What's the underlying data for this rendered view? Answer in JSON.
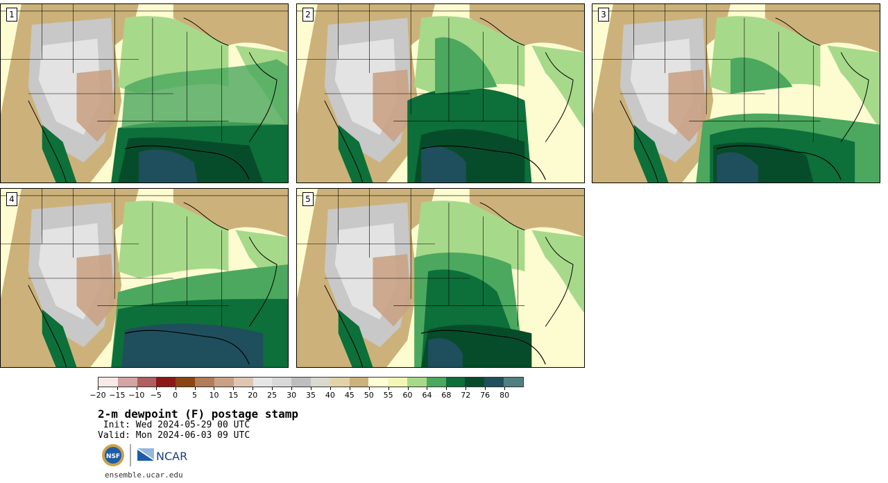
{
  "panels": [
    {
      "num": "1"
    },
    {
      "num": "2"
    },
    {
      "num": "3"
    },
    {
      "num": "4"
    },
    {
      "num": "5"
    }
  ],
  "colorbar": {
    "colors": [
      "#f6e9e6",
      "#d4a3a3",
      "#b05f60",
      "#8c1818",
      "#8b4513",
      "#b07d58",
      "#c9a285",
      "#e0c6b2",
      "#e6e6e6",
      "#d8d8d8",
      "#bebebe",
      "#d9d9cf",
      "#e2d2a8",
      "#ccb27a",
      "#fffed6",
      "#f3f7b5",
      "#a7d98a",
      "#4ba85e",
      "#0d6f3a",
      "#074c2a",
      "#1f4f5c",
      "#4f7f80"
    ],
    "tick_labels": [
      "−20",
      "−15",
      "−10",
      "−5",
      "0",
      "5",
      "10",
      "15",
      "20",
      "25",
      "30",
      "35",
      "40",
      "45",
      "50",
      "55",
      "60",
      "64",
      "68",
      "72",
      "76",
      "80"
    ]
  },
  "title": "2-m dewpoint (F) postage stamp",
  "init": " Init: Wed 2024-05-29 00 UTC",
  "valid": "Valid: Mon 2024-06-03 09 UTC",
  "logos": {
    "nsf": "NSF",
    "ncar": "NCAR"
  },
  "footer": "ensemble.ucar.edu"
}
